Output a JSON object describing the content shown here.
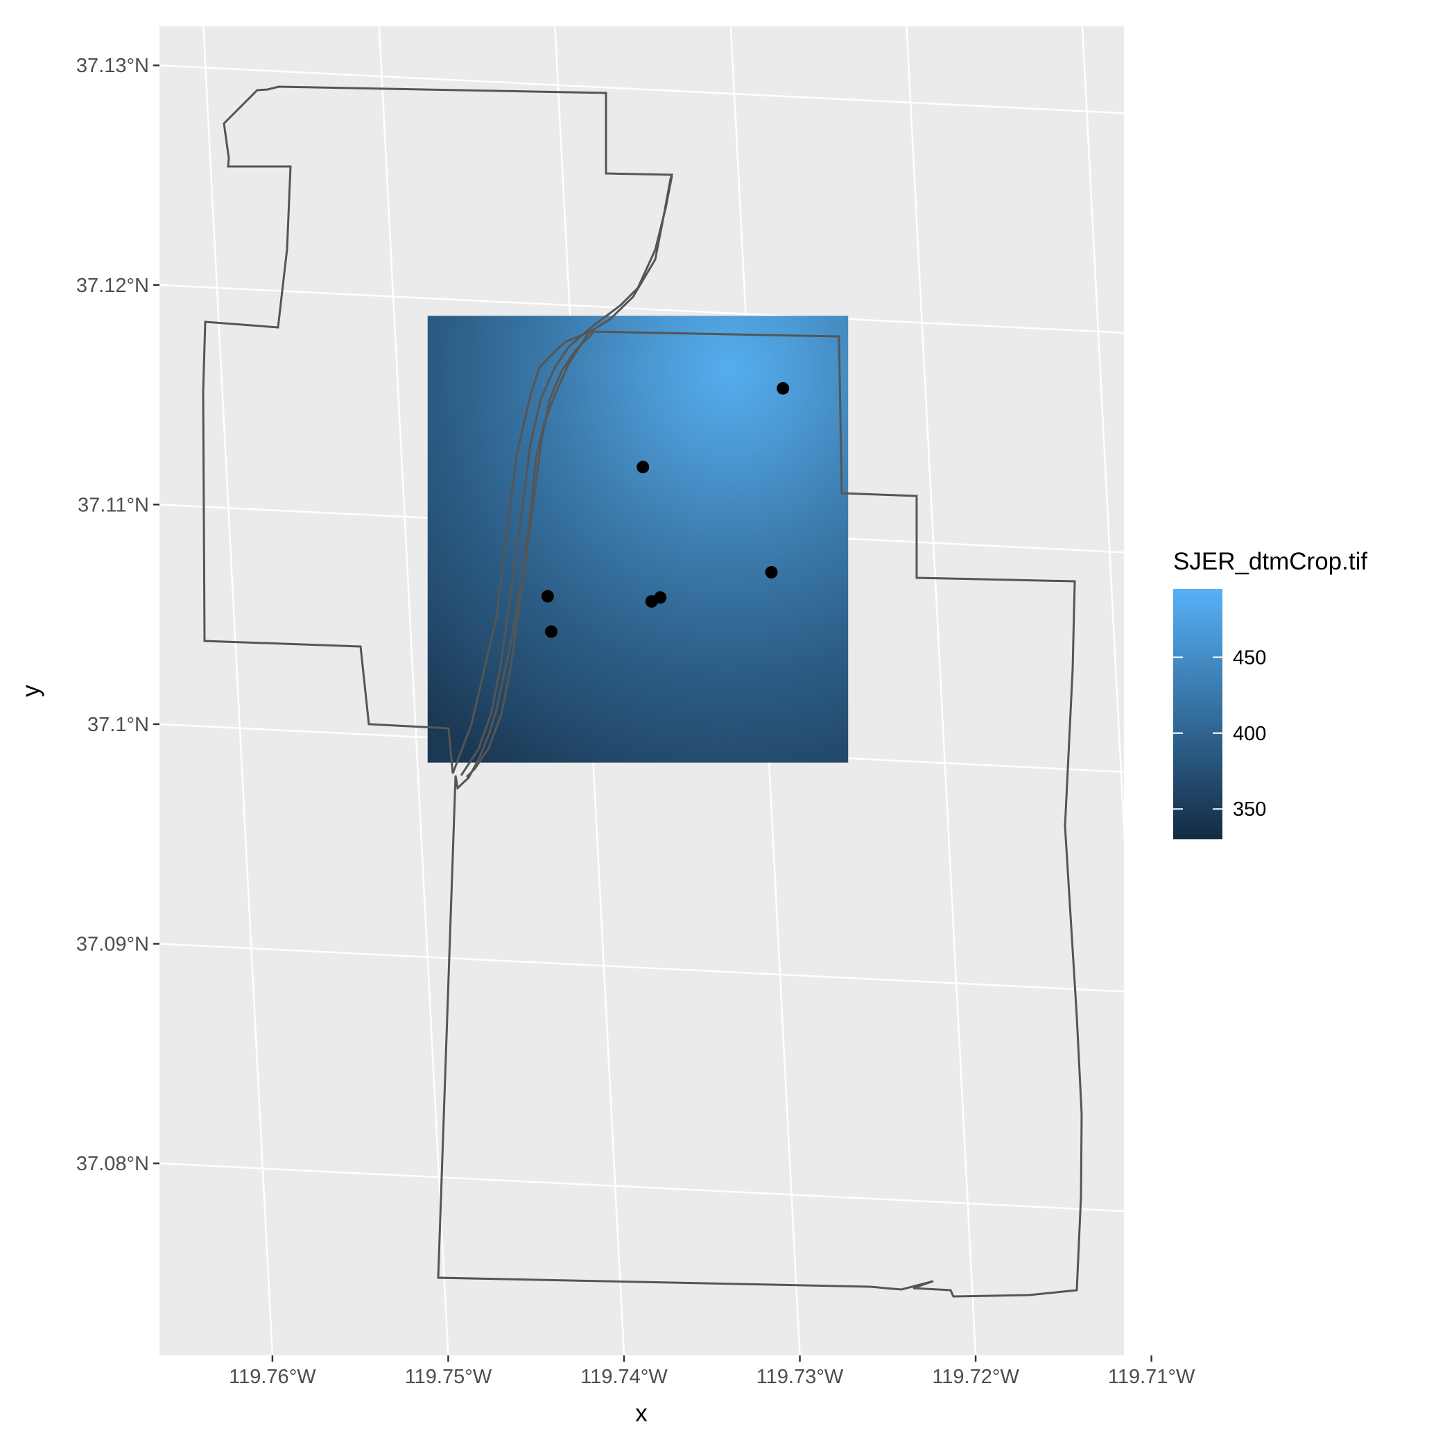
{
  "map": {
    "axes": {
      "xlabel": "x",
      "ylabel": "y",
      "x_ticks": [
        "119.76°W",
        "119.75°W",
        "119.74°W",
        "119.73°W",
        "119.72°W",
        "119.71°W"
      ],
      "y_ticks": [
        "37.13°N",
        "37.12°N",
        "37.11°N",
        "37.1°N",
        "37.09°N",
        "37.08°N"
      ]
    },
    "legend": {
      "title": "SJER_dtmCrop.tif",
      "ticks": [
        "450",
        "400",
        "350"
      ],
      "tick_values": [
        450,
        400,
        350
      ],
      "range": [
        330,
        495
      ],
      "colors": {
        "low": "#132b43",
        "high": "#56b1f7"
      }
    },
    "raster": {
      "name": "SJER_dtmCrop.tif",
      "extent": {
        "lon": [
          -119.7481,
          -119.7255
        ],
        "lat": [
          37.0998,
          37.1192
        ]
      },
      "gradient_stops": [
        "#1b3954",
        "#234a6c",
        "#2c5d86",
        "#3a78a8",
        "#4b98d2",
        "#55aeef"
      ]
    },
    "points": [
      {
        "lon": -119.7281,
        "lat": 37.1167
      },
      {
        "lon": -119.7363,
        "lat": 37.1128
      },
      {
        "lon": -119.7293,
        "lat": 37.1083
      },
      {
        "lon": -119.7421,
        "lat": 37.1067
      },
      {
        "lon": -119.7362,
        "lat": 37.1067
      },
      {
        "lon": -119.7357,
        "lat": 37.1069
      },
      {
        "lon": -119.742,
        "lat": 37.1051
      }
    ],
    "colors": {
      "panel_bg": "#ebebeb",
      "grid": "#ffffff",
      "boundary": "#555555",
      "point": "#000000",
      "axis_text": "#4d4d4d",
      "title_text": "#000000"
    }
  }
}
